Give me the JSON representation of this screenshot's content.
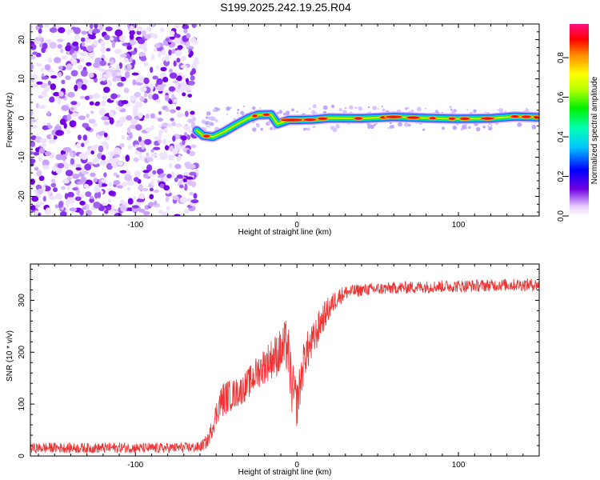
{
  "title": "S199.2025.242.19.25.R04",
  "chart_data": [
    {
      "type": "heatmap",
      "title": "S199.2025.242.19.25.R04",
      "xlabel": "Height of straight line (km)",
      "ylabel": "Frequency (Hz)",
      "xlim": [
        -165,
        150
      ],
      "ylim": [
        -25,
        24
      ],
      "xticks": [
        -100,
        0,
        100
      ],
      "yticks": [
        -20,
        -10,
        0,
        10,
        20
      ],
      "colorbar": {
        "label": "Normalized spectral amplitude",
        "range": [
          0,
          0.97
        ],
        "ticks": [
          "0.0",
          "0.2",
          "0.4",
          "0.6",
          "0.8"
        ]
      },
      "noise_region_x": [
        -165,
        -62
      ],
      "ridge": [
        {
          "x": -62,
          "f": -3.2
        },
        {
          "x": -58,
          "f": -4.5
        },
        {
          "x": -52,
          "f": -4.8
        },
        {
          "x": -45,
          "f": -3.5
        },
        {
          "x": -38,
          "f": -1.8
        },
        {
          "x": -30,
          "f": 0.0
        },
        {
          "x": -24,
          "f": 0.8
        },
        {
          "x": -16,
          "f": 0.9
        },
        {
          "x": -12,
          "f": -1.5
        },
        {
          "x": -5,
          "f": -0.5
        },
        {
          "x": 0,
          "f": -0.5
        },
        {
          "x": 10,
          "f": -0.4
        },
        {
          "x": 20,
          "f": 0.0
        },
        {
          "x": 40,
          "f": -0.1
        },
        {
          "x": 60,
          "f": 0.3
        },
        {
          "x": 80,
          "f": 0.0
        },
        {
          "x": 100,
          "f": -0.2
        },
        {
          "x": 120,
          "f": -0.1
        },
        {
          "x": 135,
          "f": 0.4
        },
        {
          "x": 150,
          "f": 0.2
        }
      ]
    },
    {
      "type": "line",
      "xlabel": "Height of straight line (km)",
      "ylabel": "SNR (10 * v/v)",
      "xlim": [
        -165,
        150
      ],
      "ylim": [
        0,
        370
      ],
      "xticks": [
        -100,
        0,
        100
      ],
      "yticks": [
        0,
        100,
        200,
        300
      ],
      "color": "#ee3333",
      "series": [
        {
          "name": "SNR",
          "x": [
            -165,
            -150,
            -130,
            -110,
            -90,
            -70,
            -60,
            -55,
            -52,
            -48,
            -45,
            -40,
            -35,
            -30,
            -25,
            -20,
            -15,
            -10,
            -6,
            -3,
            0,
            5,
            10,
            15,
            20,
            25,
            30,
            40,
            50,
            70,
            90,
            110,
            130,
            150
          ],
          "values": [
            15,
            16,
            15,
            16,
            15,
            16,
            17,
            30,
            60,
            100,
            112,
            118,
            125,
            140,
            160,
            175,
            190,
            200,
            215,
            130,
            100,
            195,
            220,
            260,
            285,
            305,
            315,
            320,
            322,
            325,
            327,
            328,
            330,
            330
          ],
          "noise": [
            10,
            10,
            10,
            10,
            10,
            10,
            10,
            14,
            20,
            30,
            34,
            30,
            28,
            30,
            32,
            36,
            40,
            45,
            55,
            55,
            45,
            40,
            36,
            30,
            24,
            18,
            14,
            12,
            12,
            12,
            12,
            12,
            12,
            12
          ]
        }
      ]
    }
  ]
}
